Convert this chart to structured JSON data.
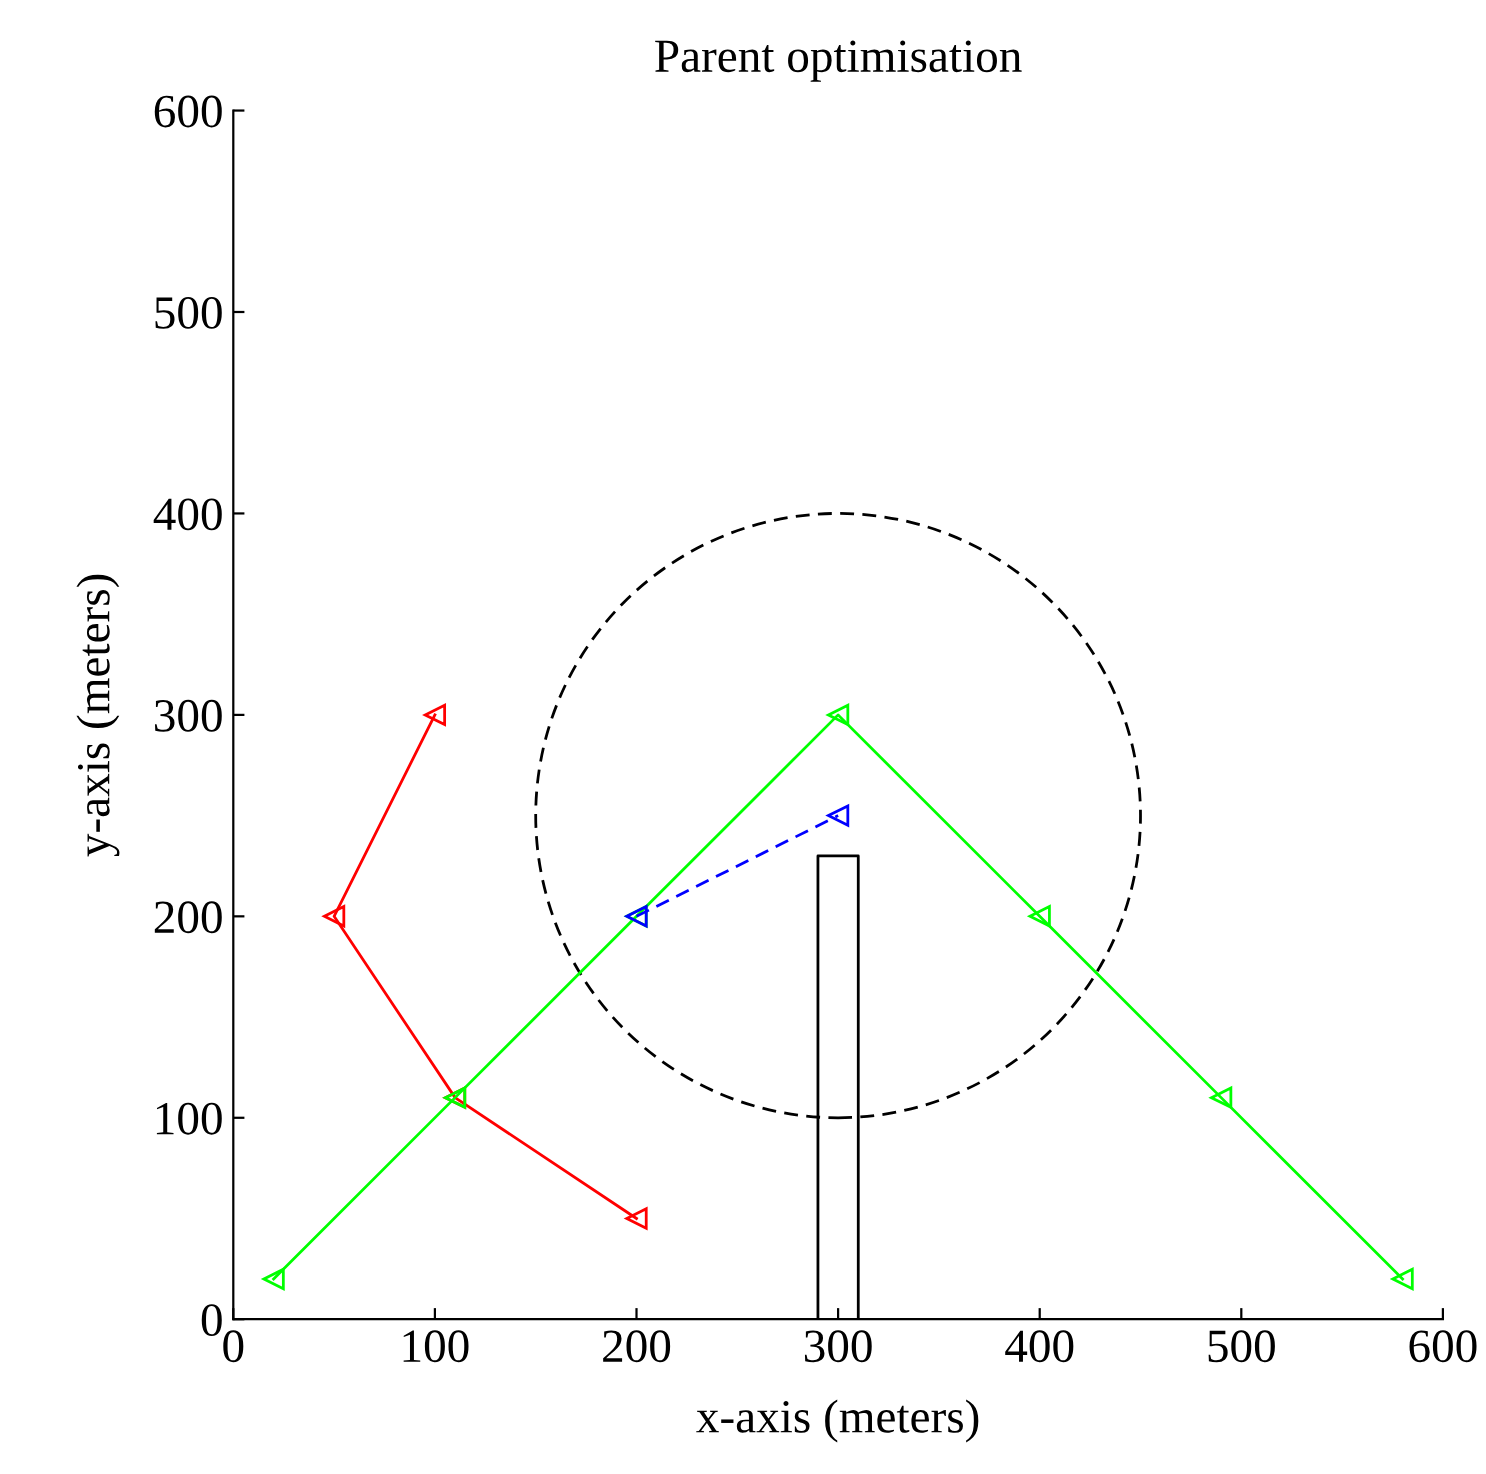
{
  "chart_data": {
    "type": "line",
    "title": "Parent optimisation",
    "xlabel": "x-axis (meters)",
    "ylabel": "y-axis (meters)",
    "xlim": [
      0,
      600
    ],
    "ylim": [
      0,
      600
    ],
    "xticks": [
      0,
      100,
      200,
      300,
      400,
      500,
      600
    ],
    "yticks": [
      0,
      100,
      200,
      300,
      400,
      500,
      600
    ],
    "grid": false,
    "legend": false,
    "series": [
      {
        "color": "#ff0000",
        "marker": "triangle",
        "line_style": "solid",
        "x": [
          100,
          50,
          110,
          200
        ],
        "values": [
          300,
          200,
          110,
          50
        ]
      },
      {
        "color": "#00ff00",
        "marker": "triangle",
        "line_style": "solid",
        "x": [
          20,
          110,
          200,
          300,
          400,
          490,
          580
        ],
        "values": [
          20,
          110,
          200,
          300,
          200,
          110,
          20
        ]
      },
      {
        "color": "#0000ff",
        "marker": "triangle",
        "line_style": "dashed",
        "x": [
          200,
          300
        ],
        "values": [
          200,
          250
        ]
      },
      {
        "color": "#000000",
        "marker": "none",
        "line_style": "solid",
        "x": [
          290,
          290,
          310,
          310
        ],
        "values": [
          0,
          230,
          230,
          0
        ]
      }
    ]
  }
}
